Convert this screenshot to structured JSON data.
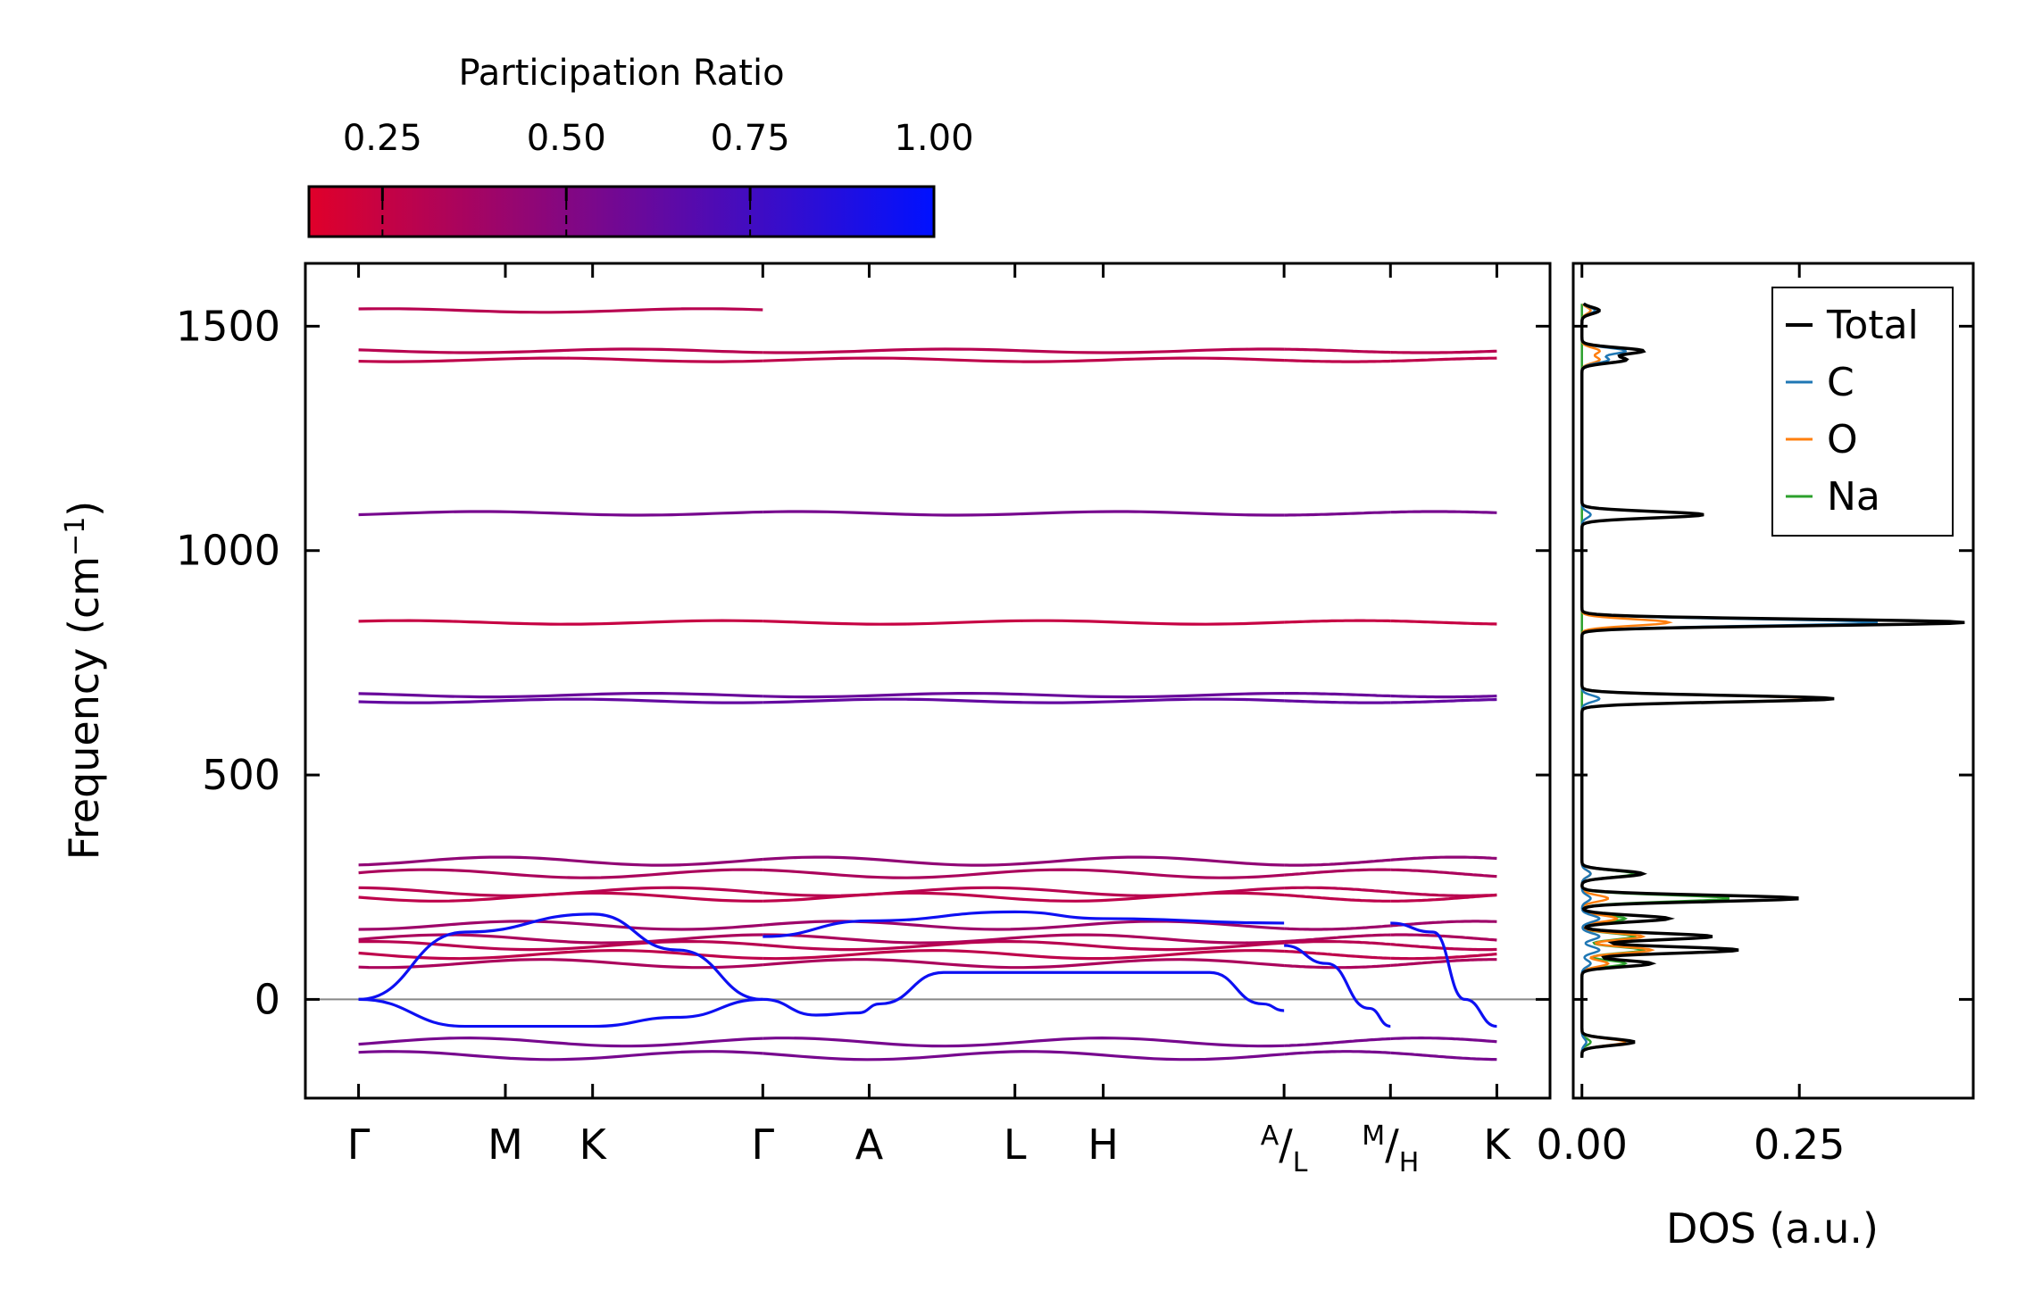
{
  "chart_data": [
    {
      "type": "line",
      "name": "phonon band structure",
      "ylabel": "Frequency (cm",
      "ylabel_sup": "−1",
      "ylabel_close": ")",
      "ylim": [
        -220,
        1640
      ],
      "yticks": [
        0,
        500,
        1000,
        1500
      ],
      "ytick_labels": [
        "0",
        "500",
        "1000",
        "1500"
      ],
      "xlim": [
        0,
        11.7
      ],
      "segments": [
        [
          0.5,
          4.3
        ],
        [
          4.3,
          9.2
        ],
        [
          9.2,
          10.2
        ],
        [
          10.2,
          11.2
        ]
      ],
      "kpoints": [
        {
          "x": 0.5,
          "label": "Γ"
        },
        {
          "x": 1.88,
          "label": "M"
        },
        {
          "x": 2.7,
          "label": "K"
        },
        {
          "x": 4.3,
          "label": "Γ"
        },
        {
          "x": 5.3,
          "label": "A"
        },
        {
          "x": 6.67,
          "label": "L"
        },
        {
          "x": 7.5,
          "label": "H"
        },
        {
          "x": 9.2,
          "label_sup": "A",
          "label_main": "L"
        },
        {
          "x": 10.2,
          "label_sup": "M",
          "label_main": "H"
        },
        {
          "x": 11.2,
          "label": "K"
        }
      ],
      "zero_line": 0,
      "colorbar": {
        "label": "Participation Ratio",
        "range": [
          0.15,
          1.0
        ],
        "ticks": [
          0.25,
          0.5,
          0.75,
          1.0
        ],
        "tick_labels": [
          "0.25",
          "0.50",
          "0.75",
          "1.00"
        ],
        "color_low": "#e0002a",
        "color_high": "#0011ff"
      },
      "flat_bands": [
        {
          "freq": 1535,
          "pr": 0.3,
          "segments": [
            0
          ]
        },
        {
          "freq": 1445,
          "pr": 0.3,
          "segments": [
            0,
            1,
            2,
            3
          ]
        },
        {
          "freq": 1425,
          "pr": 0.28,
          "segments": [
            0,
            1,
            2,
            3
          ]
        },
        {
          "freq": 1083,
          "pr": 0.55,
          "segments": [
            0,
            1,
            2,
            3
          ]
        },
        {
          "freq": 840,
          "pr": 0.25,
          "segments": [
            0,
            1,
            2,
            3
          ]
        },
        {
          "freq": 678,
          "pr": 0.6,
          "segments": [
            0,
            1,
            2,
            3
          ]
        },
        {
          "freq": 665,
          "pr": 0.62,
          "segments": [
            0,
            1,
            2,
            3
          ]
        },
        {
          "freq": 308,
          "pr": 0.45,
          "segments": [
            0,
            1,
            2,
            3
          ]
        },
        {
          "freq": 280,
          "pr": 0.35,
          "segments": [
            0,
            1,
            2,
            3
          ]
        },
        {
          "freq": 240,
          "pr": 0.3,
          "segments": [
            0,
            1,
            2,
            3
          ]
        },
        {
          "freq": 228,
          "pr": 0.28,
          "segments": [
            0,
            1,
            2,
            3
          ]
        },
        {
          "freq": 165,
          "pr": 0.4,
          "segments": [
            0,
            1,
            2,
            3
          ]
        },
        {
          "freq": 135,
          "pr": 0.35,
          "segments": [
            0,
            1,
            2,
            3
          ]
        },
        {
          "freq": 120,
          "pr": 0.3,
          "segments": [
            0,
            1,
            2,
            3
          ]
        },
        {
          "freq": 100,
          "pr": 0.28,
          "segments": [
            0,
            1,
            2,
            3
          ]
        },
        {
          "freq": 80,
          "pr": 0.35,
          "segments": [
            0,
            1,
            2,
            3
          ]
        },
        {
          "freq": -95,
          "pr": 0.55,
          "segments": [
            0,
            1,
            2,
            3
          ]
        },
        {
          "freq": -125,
          "pr": 0.55,
          "segments": [
            0,
            1,
            2,
            3
          ]
        }
      ],
      "acoustic_bands": [
        {
          "pr": 0.95,
          "x": [
            0.5,
            1.5,
            2.7,
            3.5,
            4.3
          ],
          "y": [
            0,
            150,
            190,
            110,
            0
          ]
        },
        {
          "pr": 0.95,
          "x": [
            0.5,
            1.5,
            2.7,
            3.5,
            4.3
          ],
          "y": [
            0,
            -60,
            -60,
            -40,
            0
          ]
        },
        {
          "pr": 0.95,
          "x": [
            4.3,
            4.8,
            5.2,
            5.4,
            6.0,
            8.5,
            9.0,
            9.2
          ],
          "y": [
            0,
            -35,
            -30,
            -10,
            60,
            60,
            -10,
            -25
          ]
        },
        {
          "pr": 0.95,
          "x": [
            4.3,
            5.3,
            6.67,
            7.5,
            9.2
          ],
          "y": [
            140,
            175,
            195,
            180,
            170
          ]
        },
        {
          "pr": 0.95,
          "x": [
            9.2,
            9.6,
            10.0,
            10.2
          ],
          "y": [
            120,
            80,
            -20,
            -60
          ]
        },
        {
          "pr": 0.95,
          "x": [
            10.2,
            10.6,
            10.9,
            11.2
          ],
          "y": [
            170,
            150,
            0,
            -60
          ]
        }
      ]
    },
    {
      "type": "line",
      "name": "density of states",
      "xlabel": "DOS (a.u.)",
      "xlim": [
        -0.01,
        0.45
      ],
      "xticks": [
        0.0,
        0.25
      ],
      "xtick_labels": [
        "0.00",
        "0.25"
      ],
      "ylim": [
        -220,
        1640
      ],
      "legend": [
        {
          "label": "Total",
          "color": "#000000"
        },
        {
          "label": "C",
          "color": "#1f77b4"
        },
        {
          "label": "O",
          "color": "#ff7f0e"
        },
        {
          "label": "Na",
          "color": "#2ca02c"
        }
      ],
      "peaks": [
        {
          "freq": 1535,
          "total": 0.02,
          "C": 0.015,
          "O": 0.01,
          "Na": 0.0
        },
        {
          "freq": 1445,
          "total": 0.07,
          "C": 0.05,
          "O": 0.02,
          "Na": 0.0
        },
        {
          "freq": 1425,
          "total": 0.05,
          "C": 0.03,
          "O": 0.02,
          "Na": 0.0
        },
        {
          "freq": 1080,
          "total": 0.14,
          "C": 0.01,
          "O": 0.14,
          "Na": 0.0
        },
        {
          "freq": 840,
          "total": 0.44,
          "C": 0.34,
          "O": 0.1,
          "Na": 0.0
        },
        {
          "freq": 670,
          "total": 0.29,
          "C": 0.02,
          "O": 0.27,
          "Na": 0.0
        },
        {
          "freq": 280,
          "total": 0.07,
          "C": 0.01,
          "O": 0.01,
          "Na": 0.06
        },
        {
          "freq": 225,
          "total": 0.25,
          "C": 0.01,
          "O": 0.03,
          "Na": 0.17
        },
        {
          "freq": 180,
          "total": 0.1,
          "C": 0.02,
          "O": 0.04,
          "Na": 0.05
        },
        {
          "freq": 140,
          "total": 0.15,
          "C": 0.02,
          "O": 0.07,
          "Na": 0.06
        },
        {
          "freq": 110,
          "total": 0.18,
          "C": 0.02,
          "O": 0.08,
          "Na": 0.07
        },
        {
          "freq": 80,
          "total": 0.08,
          "C": 0.01,
          "O": 0.03,
          "Na": 0.05
        },
        {
          "freq": -95,
          "total": 0.06,
          "C": 0.005,
          "O": 0.05,
          "Na": 0.01
        }
      ]
    }
  ]
}
